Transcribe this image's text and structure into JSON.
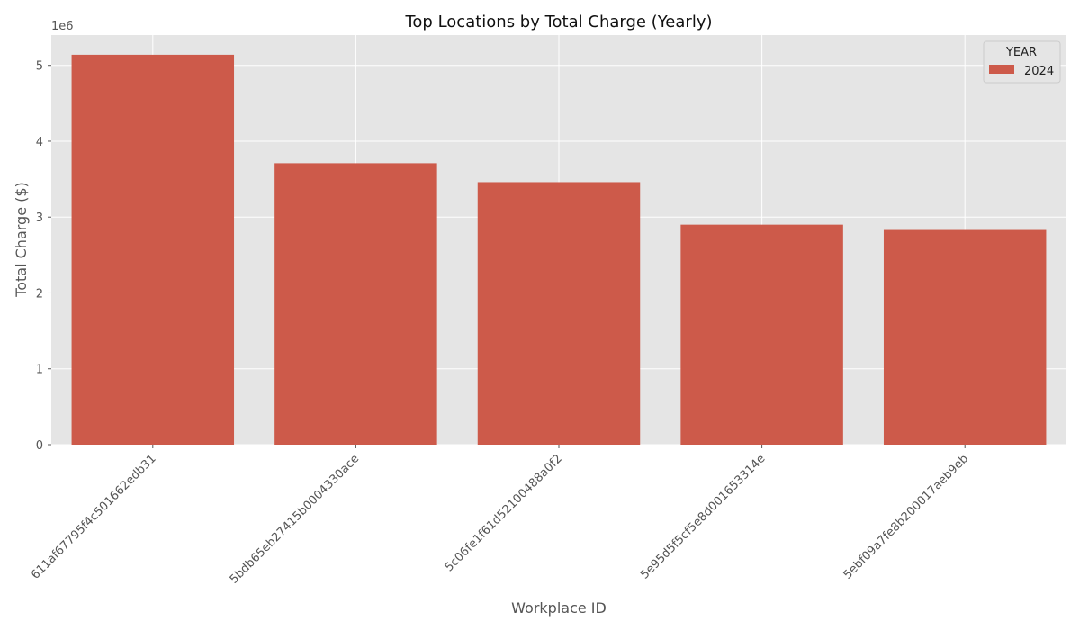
{
  "chart_data": {
    "type": "bar",
    "title": "Top Locations by Total Charge (Yearly)",
    "xlabel": "Workplace ID",
    "ylabel": "Total Charge ($)",
    "y_offset_label": "1e6",
    "categories": [
      "611af67795f4c501662edb31",
      "5bdb65eb27415b0004330ace",
      "5c06fe1f61d52100488a0f2",
      "5e95d5f5cf5e8d001653314e",
      "5ebf09a7fe8b200017aeb9eb"
    ],
    "series": [
      {
        "name": "2024",
        "color": "#cd5a4a",
        "values": [
          5140000,
          3710000,
          3460000,
          2900000,
          2830000
        ]
      }
    ],
    "yticks": [
      0,
      1,
      2,
      3,
      4,
      5
    ],
    "ylim": [
      0,
      5400000
    ],
    "grid": true,
    "legend": {
      "title": "YEAR",
      "position": "top-right"
    },
    "colors": {
      "background": "#e5e5e5",
      "grid": "#ffffff",
      "bar": "#cd5a4a"
    }
  }
}
